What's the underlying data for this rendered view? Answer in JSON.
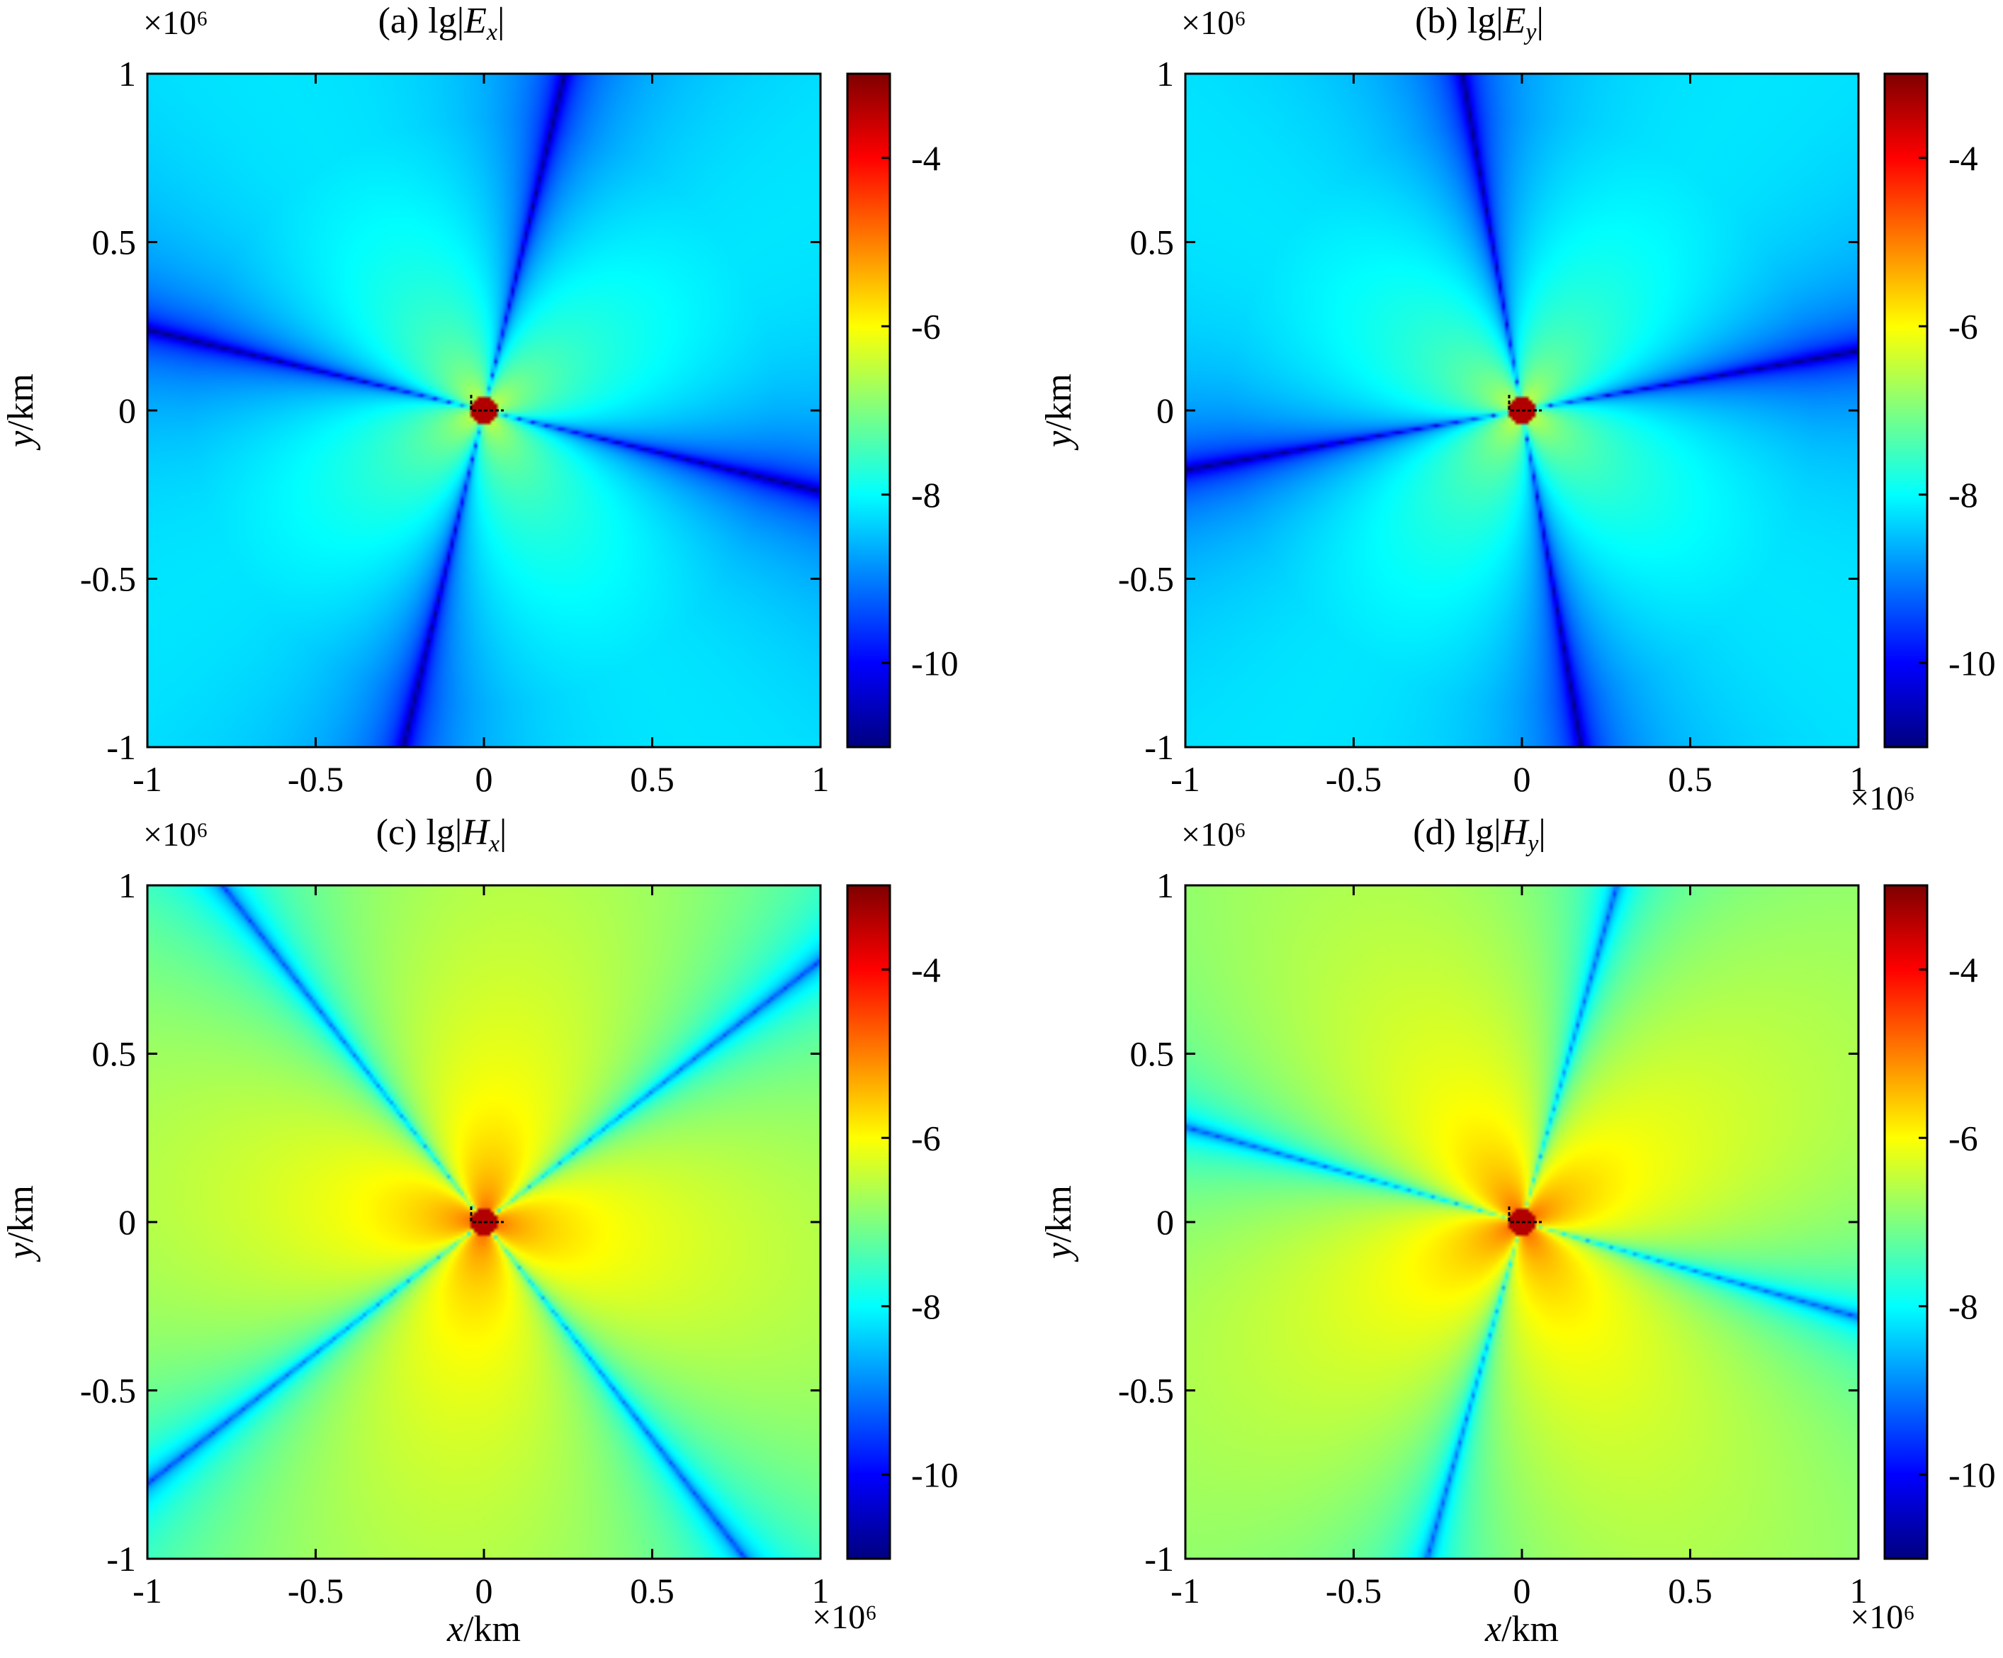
{
  "colors": {
    "colormap": [
      "#00007f",
      "#0000ff",
      "#007fff",
      "#00ffff",
      "#7fff7f",
      "#ffff00",
      "#ff7f00",
      "#ff0000",
      "#7f0000"
    ],
    "background": "#ffffff"
  },
  "chart_data": [
    {
      "type": "heatmap",
      "panel": "a",
      "title_prefix": "(a)  lg|",
      "title_var": "E",
      "title_sub": "x",
      "title_suffix": "|",
      "xlabel": "",
      "ylabel": "y/km",
      "x_ticks": [
        "-1",
        "-0.5",
        "0",
        "0.5",
        "1"
      ],
      "y_ticks": [
        "1",
        "0.5",
        "0",
        "-0.5",
        "-1"
      ],
      "x_multiplier": "",
      "y_multiplier": "×10⁶",
      "xlim": [
        -1,
        1
      ],
      "ylim": [
        -1,
        1
      ],
      "colorbar_ticks": [
        "-4",
        "-6",
        "-8",
        "-10"
      ],
      "colorbar_range": [
        -11,
        -3
      ],
      "field": "Ex"
    },
    {
      "type": "heatmap",
      "panel": "b",
      "title_prefix": "(b)  lg|",
      "title_var": "E",
      "title_sub": "y",
      "title_suffix": "|",
      "xlabel": "",
      "ylabel": "y/km",
      "x_ticks": [
        "-1",
        "-0.5",
        "0",
        "0.5",
        "1"
      ],
      "y_ticks": [
        "1",
        "0.5",
        "0",
        "-0.5",
        "-1"
      ],
      "x_multiplier": "×10⁶",
      "y_multiplier": "×10⁶",
      "xlim": [
        -1,
        1
      ],
      "ylim": [
        -1,
        1
      ],
      "colorbar_ticks": [
        "-4",
        "-6",
        "-8",
        "-10"
      ],
      "colorbar_range": [
        -11,
        -3
      ],
      "field": "Ey"
    },
    {
      "type": "heatmap",
      "panel": "c",
      "title_prefix": "(c) lg|",
      "title_var": "H",
      "title_sub": "x",
      "title_suffix": "|",
      "xlabel": "x/km",
      "ylabel": "y/km",
      "x_ticks": [
        "-1",
        "-0.5",
        "0",
        "0.5",
        "1"
      ],
      "y_ticks": [
        "1",
        "0.5",
        "0",
        "-0.5",
        "-1"
      ],
      "x_multiplier": "×10⁶",
      "y_multiplier": "×10⁶",
      "xlim": [
        -1,
        1
      ],
      "ylim": [
        -1,
        1
      ],
      "colorbar_ticks": [
        "-4",
        "-6",
        "-8",
        "-10"
      ],
      "colorbar_range": [
        -11,
        -3
      ],
      "field": "Hx"
    },
    {
      "type": "heatmap",
      "panel": "d",
      "title_prefix": "(d)  lg|",
      "title_var": "H",
      "title_sub": "y",
      "title_suffix": "|",
      "xlabel": "x/km",
      "ylabel": "y/km",
      "x_ticks": [
        "-1",
        "-0.5",
        "0",
        "0.5",
        "1"
      ],
      "y_ticks": [
        "1",
        "0.5",
        "0",
        "-0.5",
        "-1"
      ],
      "x_multiplier": "×10⁶",
      "y_multiplier": "×10⁶",
      "xlim": [
        -1,
        1
      ],
      "ylim": [
        -1,
        1
      ],
      "colorbar_ticks": [
        "-4",
        "-6",
        "-8",
        "-10"
      ],
      "colorbar_range": [
        -11,
        -3
      ],
      "field": "Hy"
    }
  ]
}
